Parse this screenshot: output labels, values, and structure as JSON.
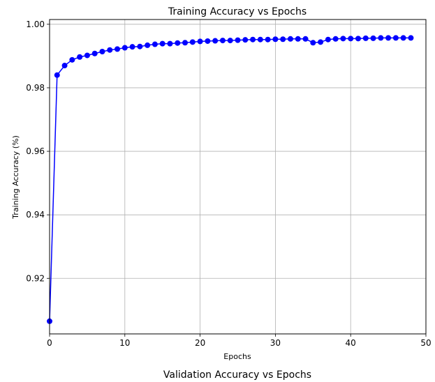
{
  "chart_data": {
    "type": "line",
    "title": "Training Accuracy vs Epochs",
    "xlabel": "Epochs",
    "ylabel": "Training Accuracy (%)",
    "xlim": [
      0,
      50
    ],
    "ylim": [
      0.9025,
      1.0015
    ],
    "xticks": [
      0,
      10,
      20,
      30,
      40,
      50
    ],
    "yticks": [
      0.92,
      0.94,
      0.96,
      0.98,
      1.0
    ],
    "xtick_labels": [
      "0",
      "10",
      "20",
      "30",
      "40",
      "50"
    ],
    "ytick_labels": [
      "0.92",
      "0.94",
      "0.96",
      "0.98",
      "1.00"
    ],
    "grid": true,
    "series": [
      {
        "color": "#0000ff",
        "marker": "circle",
        "x": [
          0,
          1,
          2,
          3,
          4,
          5,
          6,
          7,
          8,
          9,
          10,
          11,
          12,
          13,
          14,
          15,
          16,
          17,
          18,
          19,
          20,
          21,
          22,
          23,
          24,
          25,
          26,
          27,
          28,
          29,
          30,
          31,
          32,
          33,
          34,
          35,
          36,
          37,
          38,
          39,
          40,
          41,
          42,
          43,
          44,
          45,
          46,
          47,
          48
        ],
        "y": [
          0.9065,
          0.984,
          0.987,
          0.9888,
          0.9897,
          0.9902,
          0.9908,
          0.9914,
          0.9919,
          0.9922,
          0.9926,
          0.9929,
          0.993,
          0.9934,
          0.9937,
          0.9939,
          0.9939,
          0.9941,
          0.9942,
          0.9944,
          0.9946,
          0.9947,
          0.9948,
          0.9949,
          0.9949,
          0.995,
          0.9951,
          0.9952,
          0.9952,
          0.9952,
          0.9953,
          0.9953,
          0.9954,
          0.9954,
          0.9954,
          0.9942,
          0.9944,
          0.9952,
          0.9954,
          0.9955,
          0.9955,
          0.9955,
          0.9956,
          0.9956,
          0.9957,
          0.9957,
          0.9957,
          0.9957,
          0.9957
        ]
      }
    ]
  },
  "next_chart": {
    "title": "Validation Accuracy vs Epochs"
  }
}
